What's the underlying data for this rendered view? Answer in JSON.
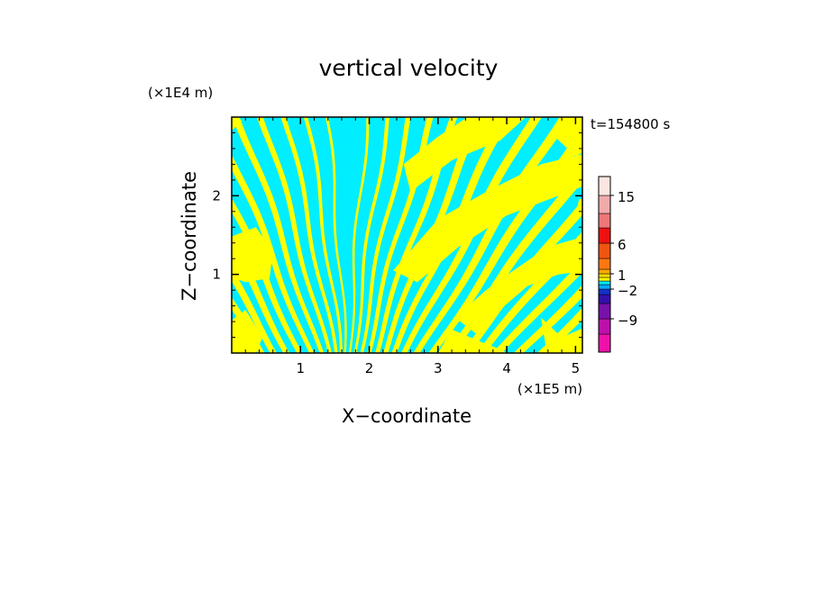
{
  "chart_data": {
    "type": "heatmap",
    "title": "vertical velocity",
    "xlabel": "X−coordinate",
    "ylabel": "Z−coordinate",
    "x_unit": "(×1E5 m)",
    "y_unit": "(×1E4 m)",
    "time_label": "t=154800 s",
    "xlim": [
      0,
      5.1
    ],
    "ylim": [
      0,
      3.0
    ],
    "x_ticks": [
      1,
      2,
      3,
      4,
      5
    ],
    "x_tick_labels": [
      "1",
      "2",
      "3",
      "4",
      "5"
    ],
    "y_ticks": [
      1,
      2
    ],
    "y_tick_labels": [
      "1",
      "2"
    ],
    "field_colors": {
      "positive": "#ffff00",
      "negative": "#00eeff"
    },
    "colorbar": {
      "levels": [
        {
          "value": -12,
          "color": "#ee11aa"
        },
        {
          "value": -9,
          "color": "#bb11aa"
        },
        {
          "value": -6,
          "color": "#7711aa"
        },
        {
          "value": -4,
          "color": "#3311aa"
        },
        {
          "value": -2,
          "color": "#1133cc"
        },
        {
          "value": -1,
          "color": "#00aaff"
        },
        {
          "value": 0,
          "color": "#00eeff"
        },
        {
          "value": 0.5,
          "color": "#ffff00"
        },
        {
          "value": 1,
          "color": "#ffdd00"
        },
        {
          "value": 2,
          "color": "#ffaa00"
        },
        {
          "value": 4,
          "color": "#ff7711"
        },
        {
          "value": 6,
          "color": "#ee5511"
        },
        {
          "value": 9,
          "color": "#ee1111"
        },
        {
          "value": 12,
          "color": "#ee7777"
        },
        {
          "value": 15,
          "color": "#f0aaaa"
        },
        {
          "value": 20,
          "color": "#fbe5e0"
        }
      ],
      "tick_labels": [
        "15",
        "6",
        "1",
        "−2",
        "−9"
      ]
    }
  }
}
